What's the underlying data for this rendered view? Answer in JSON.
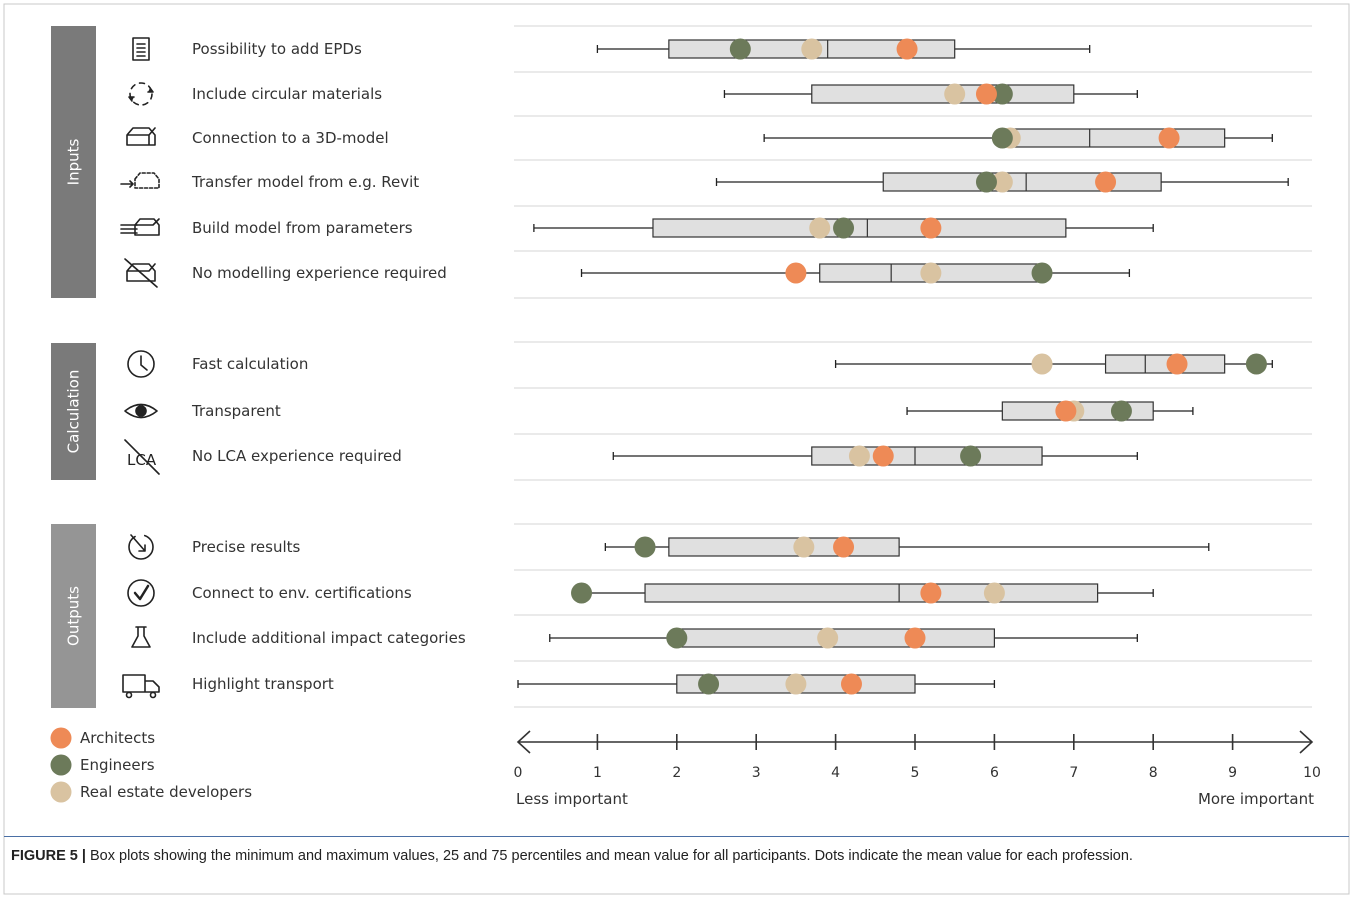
{
  "chart_data": {
    "type": "box",
    "x_ticks": [
      "0",
      "1",
      "2",
      "3",
      "4",
      "5",
      "6",
      "7",
      "8",
      "9",
      "10"
    ],
    "xlim": [
      0,
      10
    ],
    "x_low_label": "Less important",
    "x_high_label": "More important",
    "groups": [
      {
        "name": "Inputs",
        "rows": [
          0,
          1,
          2,
          3,
          4,
          5
        ]
      },
      {
        "name": "Calculation",
        "rows": [
          6,
          7,
          8
        ]
      },
      {
        "name": "Outputs",
        "rows": [
          9,
          10,
          11,
          12
        ]
      }
    ],
    "series": [
      {
        "name": "Architects",
        "color": "#ee8a56"
      },
      {
        "name": "Engineers",
        "color": "#6c7a5a"
      },
      {
        "name": "Real estate developers",
        "color": "#d9c3a1"
      }
    ],
    "rows": [
      {
        "label": "Possibility to add EPDs",
        "icon": "document-icon",
        "min": 1.0,
        "q1": 1.9,
        "median": 3.9,
        "q3": 5.5,
        "max": 7.2,
        "mean_architects": 4.9,
        "mean_engineers": 2.8,
        "mean_developers": 3.7
      },
      {
        "label": "Include circular materials",
        "icon": "recycle-icon",
        "min": 2.6,
        "q1": 3.7,
        "median": 5.5,
        "q3": 7.0,
        "max": 7.8,
        "mean_architects": 5.9,
        "mean_engineers": 6.1,
        "mean_developers": 5.5
      },
      {
        "label": "Connection to a 3D-model",
        "icon": "3d-model-icon",
        "min": 3.1,
        "q1": 6.2,
        "median": 7.2,
        "q3": 8.9,
        "max": 9.5,
        "mean_architects": 8.2,
        "mean_engineers": 6.1,
        "mean_developers": 6.2
      },
      {
        "label": "Transfer model from e.g. Revit",
        "icon": "transfer-model-icon",
        "min": 2.5,
        "q1": 4.6,
        "median": 6.4,
        "q3": 8.1,
        "max": 9.7,
        "mean_architects": 7.4,
        "mean_engineers": 5.9,
        "mean_developers": 6.1
      },
      {
        "label": "Build model from parameters",
        "icon": "build-model-icon",
        "min": 0.2,
        "q1": 1.7,
        "median": 4.4,
        "q3": 6.9,
        "max": 8.0,
        "mean_architects": 5.2,
        "mean_engineers": 4.1,
        "mean_developers": 3.8
      },
      {
        "label": "No modelling experience required",
        "icon": "no-model-icon",
        "min": 0.8,
        "q1": 3.8,
        "median": 4.7,
        "q3": 6.6,
        "max": 7.7,
        "mean_architects": 3.5,
        "mean_engineers": 6.6,
        "mean_developers": 5.2
      },
      {
        "label": "Fast calculation",
        "icon": "clock-icon",
        "min": 4.0,
        "q1": 7.4,
        "median": 7.9,
        "q3": 8.9,
        "max": 9.5,
        "mean_architects": 8.3,
        "mean_engineers": 9.3,
        "mean_developers": 6.6
      },
      {
        "label": "Transparent",
        "icon": "eye-icon",
        "min": 4.9,
        "q1": 6.1,
        "median": 7.0,
        "q3": 8.0,
        "max": 8.5,
        "mean_architects": 6.9,
        "mean_engineers": 7.6,
        "mean_developers": 7.0
      },
      {
        "label": "No LCA experience required",
        "icon": "no-lca-icon",
        "min": 1.2,
        "q1": 3.7,
        "median": 5.0,
        "q3": 6.6,
        "max": 7.8,
        "mean_architects": 4.6,
        "mean_engineers": 5.7,
        "mean_developers": 4.3
      },
      {
        "label": "Precise results",
        "icon": "target-icon",
        "min": 1.1,
        "q1": 1.9,
        "median": 3.6,
        "q3": 4.8,
        "max": 8.7,
        "mean_architects": 4.1,
        "mean_engineers": 1.6,
        "mean_developers": 3.6
      },
      {
        "label": "Connect to env. certifications",
        "icon": "check-circle-icon",
        "min": 0.8,
        "q1": 1.6,
        "median": 4.8,
        "q3": 7.3,
        "max": 8.0,
        "mean_architects": 5.2,
        "mean_engineers": 0.8,
        "mean_developers": 6.0
      },
      {
        "label": "Include additional impact categories",
        "icon": "flask-icon",
        "min": 0.4,
        "q1": 2.0,
        "median": 3.9,
        "q3": 6.0,
        "max": 7.8,
        "mean_architects": 5.0,
        "mean_engineers": 2.0,
        "mean_developers": 3.9
      },
      {
        "label": "Highlight transport",
        "icon": "truck-icon",
        "min": 0.0,
        "q1": 2.0,
        "median": 3.5,
        "q3": 5.0,
        "max": 6.0,
        "mean_architects": 4.2,
        "mean_engineers": 2.4,
        "mean_developers": 3.5
      }
    ]
  },
  "caption": {
    "label": "FIGURE 5 |",
    "text": " Box plots showing the minimum and maximum values, 25 and 75 percentiles and mean value for all participants. Dots indicate the mean value for each profession."
  }
}
